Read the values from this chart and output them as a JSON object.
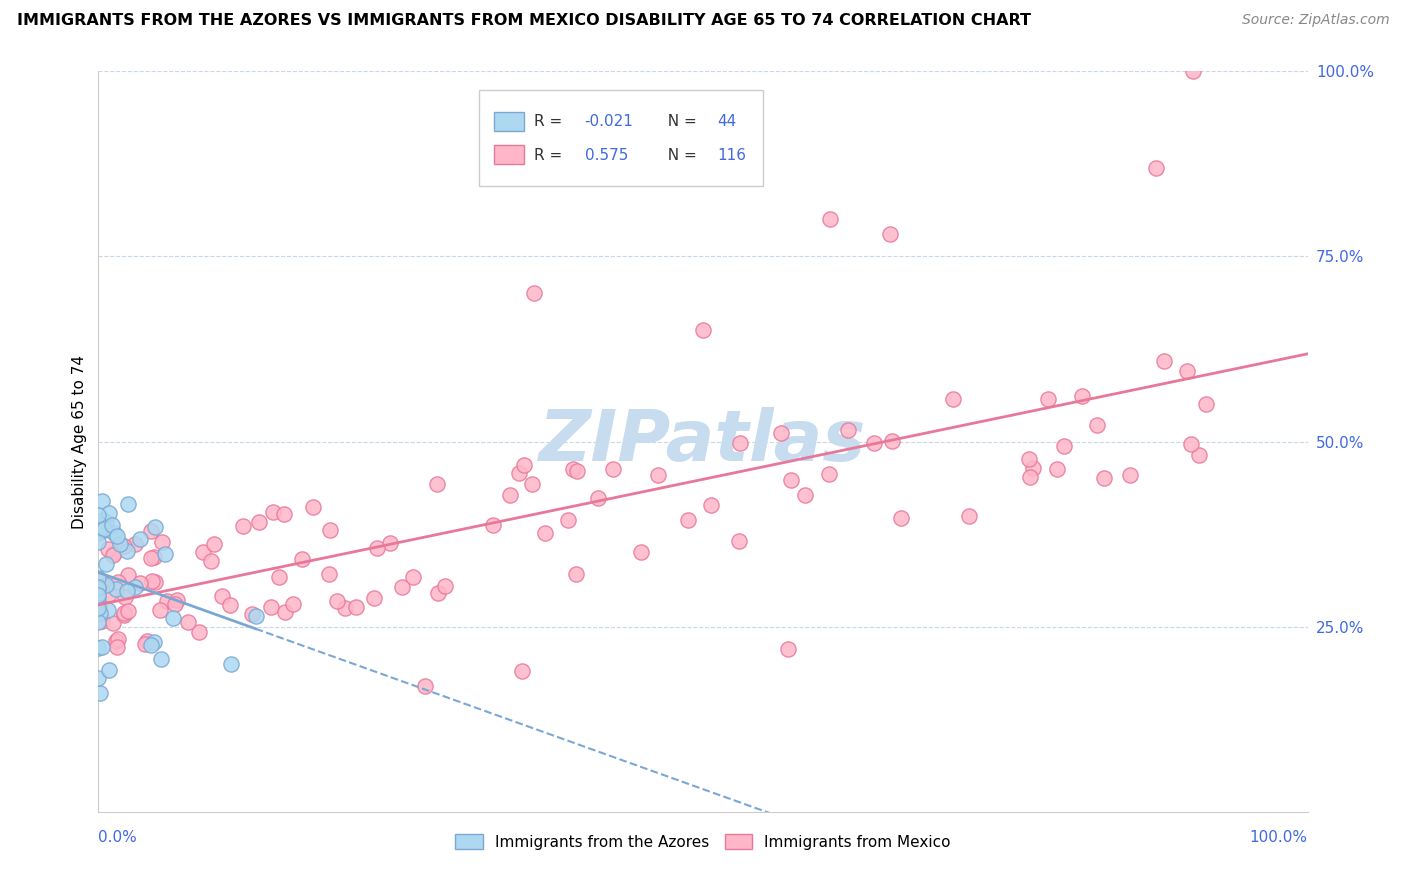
{
  "title": "IMMIGRANTS FROM THE AZORES VS IMMIGRANTS FROM MEXICO DISABILITY AGE 65 TO 74 CORRELATION CHART",
  "source": "Source: ZipAtlas.com",
  "ylabel": "Disability Age 65 to 74",
  "legend_label1": "Immigrants from the Azores",
  "legend_label2": "Immigrants from Mexico",
  "r1": "-0.021",
  "n1": "44",
  "r2": "0.575",
  "n2": "116",
  "color_azores_fill": "#ADD8F0",
  "color_azores_edge": "#7BA7D4",
  "color_mexico_fill": "#FFB6C8",
  "color_mexico_edge": "#E8789A",
  "color_azores_line": "#7BA7D4",
  "color_mexico_line": "#E8789A",
  "color_grid": "#C8D8E8",
  "color_right_labels": "#4169E1",
  "watermark_text": "ZIPatlas",
  "watermark_color": "#C8DCF0",
  "xlim": [
    0,
    1.0
  ],
  "ylim": [
    0,
    1.0
  ],
  "yticks": [
    0.25,
    0.5,
    0.75,
    1.0
  ],
  "ytick_labels": [
    "25.0%",
    "50.0%",
    "75.0%",
    "100.0%"
  ]
}
